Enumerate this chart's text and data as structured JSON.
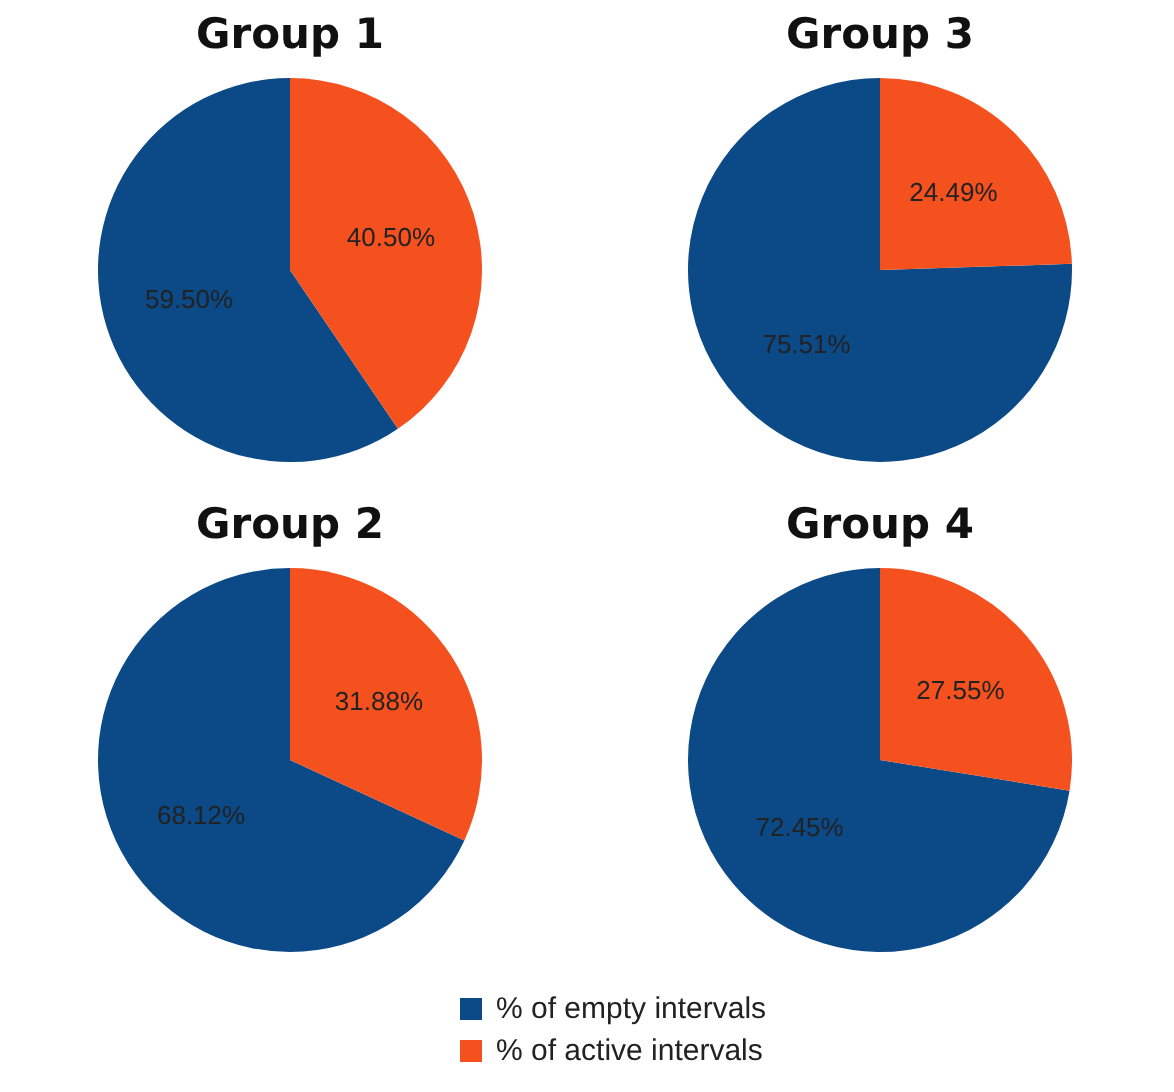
{
  "chart_data": [
    {
      "type": "pie",
      "title": "Group 1",
      "categories": [
        "% of empty intervals",
        "% of active intervals"
      ],
      "values": [
        59.5,
        40.5
      ],
      "colors": [
        "#0b4987",
        "#f4511e"
      ],
      "value_labels": [
        "59.50%",
        "40.50%"
      ],
      "legend": "bottom"
    },
    {
      "type": "pie",
      "title": "Group 3",
      "categories": [
        null,
        null
      ],
      "values": [
        75.51,
        24.49
      ],
      "colors": [
        "#0b4987",
        "#f4511e"
      ],
      "value_labels": [
        "75.51%",
        "24.49%"
      ]
    },
    {
      "type": "pie",
      "title": "Group 2",
      "categories": [
        null,
        null
      ],
      "values": [
        68.12,
        31.88
      ],
      "colors": [
        "#0b4987",
        "#f4511e"
      ],
      "value_labels": [
        "68.12%",
        "31.88%"
      ]
    },
    {
      "type": "pie",
      "title": "Group 4",
      "categories": [
        null,
        null
      ],
      "values": [
        72.45,
        27.55
      ],
      "colors": [
        "#0b4987",
        "#f4511e"
      ],
      "value_labels": [
        "72.45%",
        "27.55%"
      ]
    }
  ]
}
